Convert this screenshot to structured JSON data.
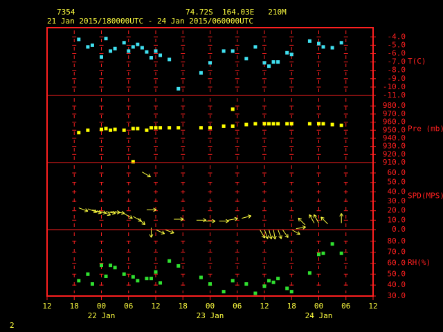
{
  "header": {
    "station": "7354",
    "location": "74.72S  164.03E   210M",
    "period": "21 Jan 2015/180000UTC - 24 Jan 2015/060000UTC"
  },
  "footer": {
    "page": "2"
  },
  "chart_data": [
    {
      "type": "scatter",
      "label": "T(C)",
      "color": "#40e0f0",
      "ylim": [
        -11,
        -2.9
      ],
      "yticks": [
        {
          "value": -4,
          "label": "-4.0"
        },
        {
          "value": -5,
          "label": "-5.0"
        },
        {
          "value": -6,
          "label": "-6.0"
        },
        {
          "value": -7,
          "label": "-7.0"
        },
        {
          "value": -8,
          "label": "-8.0"
        },
        {
          "value": -9,
          "label": "-9.0"
        },
        {
          "value": -10,
          "label": "-10.0"
        },
        {
          "value": -11,
          "label": "-11.0"
        }
      ],
      "x": [
        7,
        9,
        10,
        12,
        13,
        14,
        15,
        17,
        18,
        19,
        20,
        21,
        22,
        23,
        24,
        25,
        27,
        29,
        34,
        36,
        39,
        41,
        44,
        46,
        48,
        49,
        50,
        51,
        53,
        54,
        58,
        60,
        61,
        63,
        65
      ],
      "values": [
        -4.3,
        -5.2,
        -5.0,
        -6.4,
        -4.2,
        -5.7,
        -5.4,
        -4.7,
        -5.7,
        -5.2,
        -4.9,
        -5.3,
        -5.8,
        -6.5,
        -5.7,
        -6.2,
        -6.7,
        -10.2,
        -8.3,
        -7.1,
        -5.7,
        -5.7,
        -6.6,
        -5.2,
        -7.1,
        -7.5,
        -7.0,
        -7.0,
        -5.9,
        -6.1,
        -4.5,
        -4.8,
        -5.2,
        -5.3,
        -4.7
      ]
    },
    {
      "type": "scatter",
      "label": "Pre (mb)",
      "color": "#ffff00",
      "ylim": [
        910,
        993
      ],
      "yticks": [
        {
          "value": 980,
          "label": "980.0"
        },
        {
          "value": 970,
          "label": "970.0"
        },
        {
          "value": 960,
          "label": "960.0"
        },
        {
          "value": 950,
          "label": "950.0"
        },
        {
          "value": 940,
          "label": "940.0"
        },
        {
          "value": 930,
          "label": "930.0"
        },
        {
          "value": 920,
          "label": "920.0"
        },
        {
          "value": 910,
          "label": "910.0"
        }
      ],
      "x": [
        7,
        9,
        12,
        13,
        14,
        15,
        17,
        19,
        20,
        22,
        23,
        24,
        25,
        27,
        29,
        34,
        36,
        39,
        41,
        41,
        44,
        46,
        48,
        49,
        50,
        51,
        53,
        54,
        58,
        60,
        61,
        63,
        65,
        19
      ],
      "values": [
        947,
        950,
        951,
        952,
        950,
        951,
        950,
        952,
        952,
        950,
        953,
        953,
        953,
        953,
        953,
        953,
        953,
        955,
        976,
        955,
        957,
        958,
        958,
        958,
        958,
        958,
        958,
        958,
        958,
        958,
        958,
        957,
        956,
        911
      ]
    },
    {
      "type": "vector",
      "label": "SPD(MPS)",
      "color": "#ffff40",
      "ylim": [
        0,
        71
      ],
      "yticks": [
        {
          "value": 60,
          "label": "60.0"
        },
        {
          "value": 50,
          "label": "50.0"
        },
        {
          "value": 40,
          "label": "40.0"
        },
        {
          "value": 30,
          "label": "30.0"
        },
        {
          "value": 20,
          "label": "20.0"
        },
        {
          "value": 10,
          "label": "10.0"
        },
        {
          "value": 0,
          "label": "0.0"
        }
      ],
      "x": [
        7,
        9,
        10,
        11,
        12,
        13,
        14,
        15,
        17,
        19,
        20,
        22,
        23,
        24,
        26,
        28,
        33,
        35,
        38,
        40,
        43,
        47,
        48,
        49,
        50,
        51,
        52,
        54,
        55,
        57,
        59,
        60,
        62,
        65,
        21
      ],
      "values": [
        23,
        22,
        21,
        20,
        19,
        19,
        19,
        19,
        17,
        14,
        12,
        21,
        2,
        0,
        0,
        11,
        10,
        9,
        9,
        10,
        12,
        0,
        0,
        0,
        0,
        0,
        0,
        0,
        1,
        5,
        7,
        7,
        6,
        7,
        61
      ],
      "directions": [
        110,
        110,
        110,
        105,
        110,
        100,
        95,
        100,
        120,
        120,
        130,
        90,
        180,
        115,
        110,
        90,
        90,
        90,
        90,
        80,
        75,
        150,
        160,
        165,
        170,
        160,
        145,
        120,
        80,
        315,
        330,
        330,
        315,
        0,
        120
      ]
    },
    {
      "type": "scatter",
      "label": "RH(%)",
      "color": "#30e030",
      "ylim": [
        30,
        90.6
      ],
      "yticks": [
        {
          "value": 80,
          "label": "80.0"
        },
        {
          "value": 70,
          "label": "70.0"
        },
        {
          "value": 60,
          "label": "60.0"
        },
        {
          "value": 50,
          "label": "50.0"
        },
        {
          "value": 40,
          "label": "40.0"
        },
        {
          "value": 30,
          "label": "30.0"
        }
      ],
      "x": [
        7,
        9,
        10,
        12,
        13,
        14,
        15,
        17,
        19,
        20,
        22,
        23,
        24,
        25,
        27,
        29,
        34,
        36,
        39,
        41,
        44,
        46,
        48,
        49,
        50,
        51,
        53,
        54,
        58,
        60,
        61,
        63,
        65
      ],
      "values": [
        44,
        50,
        41,
        58,
        48,
        58,
        56,
        50,
        47.5,
        44,
        46,
        46,
        52,
        42,
        62,
        57.5,
        47,
        41,
        34,
        44,
        41,
        32.5,
        39,
        44,
        42.5,
        46,
        37,
        34,
        51,
        68,
        69,
        77.5,
        69
      ],
      "xlim": [
        0,
        72
      ],
      "xticks": [
        {
          "value": 0,
          "label": "12"
        },
        {
          "value": 6,
          "label": "18"
        },
        {
          "value": 12,
          "label": "00"
        },
        {
          "value": 18,
          "label": "06"
        },
        {
          "value": 24,
          "label": "12"
        },
        {
          "value": 30,
          "label": "18"
        },
        {
          "value": 36,
          "label": "00"
        },
        {
          "value": 42,
          "label": "06"
        },
        {
          "value": 48,
          "label": "12"
        },
        {
          "value": 54,
          "label": "18"
        },
        {
          "value": 60,
          "label": "00"
        },
        {
          "value": 66,
          "label": "06"
        },
        {
          "value": 72,
          "label": "12"
        }
      ],
      "date_labels": [
        {
          "value": 12,
          "label": "22 Jan"
        },
        {
          "value": 36,
          "label": "23 Jan"
        },
        {
          "value": 60,
          "label": "24 Jan"
        }
      ]
    }
  ]
}
